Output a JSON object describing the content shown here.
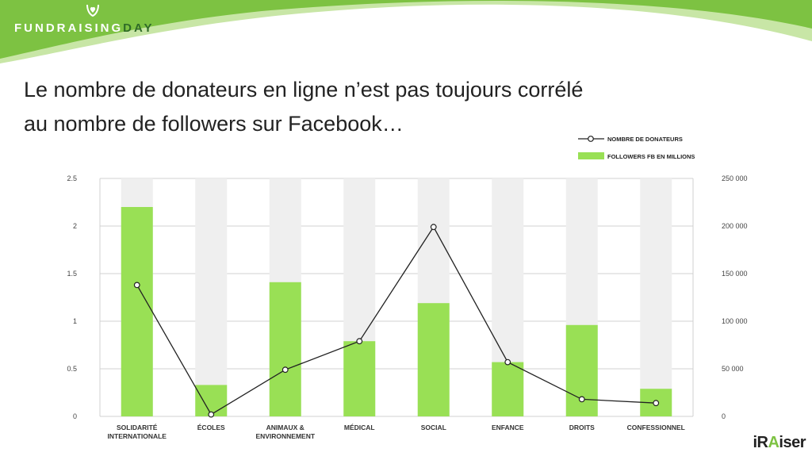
{
  "brand": {
    "name_part1": "FUNDRAISING",
    "name_part2": "DAY",
    "colors": {
      "wave": "#7dc242",
      "accent": "#2f6b27"
    }
  },
  "headline": "Le nombre de donateurs en ligne n’est pas toujours corrélé au nombre de followers sur Facebook…",
  "footer": {
    "logo_part1": "iR",
    "logo_part2": "A",
    "logo_part3": "iser"
  },
  "chart_data": {
    "type": "bar",
    "title": "",
    "categories": [
      [
        "SOLIDARITÉ",
        "INTERNATIONALE"
      ],
      [
        "ÉCOLES"
      ],
      [
        "ANIMAUX &",
        "ENVIRONNEMENT"
      ],
      [
        "MÉDICAL"
      ],
      [
        "SOCIAL"
      ],
      [
        "ENFANCE"
      ],
      [
        "DROITS"
      ],
      [
        "CONFESSIONNEL"
      ]
    ],
    "series": [
      {
        "name": "FOLLOWERS FB EN MILLIONS",
        "type": "bar",
        "axis": "left",
        "color": "#99e055",
        "values": [
          2.2,
          0.33,
          1.41,
          0.79,
          1.19,
          0.57,
          0.96,
          0.29
        ]
      },
      {
        "name": "NOMBRE DE DONATEURS",
        "type": "line",
        "axis": "right",
        "color": "#222222",
        "values": [
          138000,
          2000,
          49000,
          79000,
          199000,
          57000,
          18000,
          14000
        ]
      }
    ],
    "bar_background_color": "#efefef",
    "y_left": {
      "min": 0,
      "max": 2.5,
      "ticks": [
        0,
        0.5,
        1,
        1.5,
        2,
        2.5
      ],
      "tick_labels": [
        "0",
        "0.5",
        "1",
        "1.5",
        "2",
        "2.5"
      ]
    },
    "y_right": {
      "min": 0,
      "max": 250000,
      "ticks": [
        0,
        50000,
        100000,
        150000,
        200000,
        250000
      ],
      "tick_labels": [
        "0",
        "50 000",
        "100 000",
        "150 000",
        "200 000",
        "250 000"
      ]
    },
    "grid": true,
    "legend_position": "top-right"
  }
}
